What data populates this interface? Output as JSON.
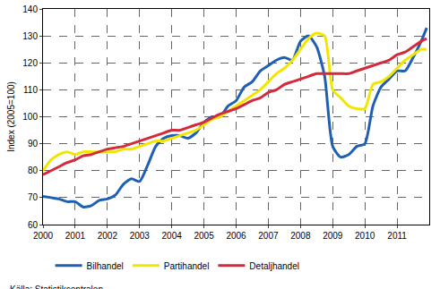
{
  "chart_data": {
    "type": "line",
    "y_label": "Index (2005=100)",
    "annotations": [
      "Källa: Statistikcentralen"
    ],
    "x": [
      2000,
      2000.25,
      2000.5,
      2000.75,
      2001,
      2001.25,
      2001.5,
      2001.75,
      2002,
      2002.25,
      2002.5,
      2002.75,
      2003,
      2003.25,
      2003.5,
      2003.75,
      2004,
      2004.25,
      2004.5,
      2004.75,
      2005,
      2005.25,
      2005.5,
      2005.75,
      2006,
      2006.25,
      2006.5,
      2006.75,
      2007,
      2007.25,
      2007.5,
      2007.75,
      2008,
      2008.25,
      2008.5,
      2008.75,
      2009,
      2009.25,
      2009.5,
      2009.75,
      2010,
      2010.25,
      2010.5,
      2010.75,
      2011,
      2011.25,
      2011.5,
      2011.75,
      2011.92
    ],
    "series": [
      {
        "name": "Bilhandel",
        "color": "#1f5fb4",
        "values": [
          70.5,
          70,
          69.5,
          68.5,
          68.5,
          66.5,
          67,
          69,
          69.5,
          71,
          75,
          77,
          76,
          82,
          89,
          92,
          93,
          93,
          92,
          94,
          98,
          100,
          100,
          104,
          106,
          111,
          113,
          117,
          119,
          121,
          122,
          121,
          128,
          130,
          126,
          115,
          89,
          85,
          86,
          89,
          90,
          104,
          111,
          114,
          117,
          117,
          122,
          128,
          133
        ]
      },
      {
        "name": "Partihandel",
        "color": "#f2e600",
        "values": [
          80,
          84,
          86,
          87,
          86,
          87,
          87,
          87,
          87,
          87,
          88,
          88,
          89,
          90,
          91,
          91,
          92,
          93,
          94,
          95,
          97,
          99,
          100,
          102,
          104,
          106,
          108,
          110,
          113,
          116,
          118,
          121,
          125,
          129,
          131,
          130,
          110,
          107,
          104,
          103,
          103,
          112,
          113,
          115,
          118,
          121,
          123,
          125,
          125
        ]
      },
      {
        "name": "Detaljhandel",
        "color": "#d42a3c",
        "values": [
          78.5,
          80,
          81.5,
          83,
          84,
          85.5,
          86,
          87,
          88,
          88.5,
          89,
          90,
          91,
          92,
          93,
          94,
          95,
          95,
          96,
          97,
          98,
          99.5,
          101,
          102,
          103,
          104.5,
          106,
          107,
          109,
          110,
          112,
          113,
          114,
          115,
          116,
          116,
          116,
          116,
          116,
          117,
          118,
          119,
          120,
          121,
          123,
          124,
          126,
          128,
          129
        ]
      }
    ],
    "xlim": [
      2000,
      2012
    ],
    "xticks": [
      2000,
      2001,
      2002,
      2003,
      2004,
      2005,
      2006,
      2007,
      2008,
      2009,
      2010,
      2011
    ],
    "ylim": [
      60,
      140
    ],
    "yticks": [
      60,
      70,
      80,
      90,
      100,
      110,
      120,
      130,
      140
    ],
    "grid": true,
    "legend": "bottom"
  }
}
